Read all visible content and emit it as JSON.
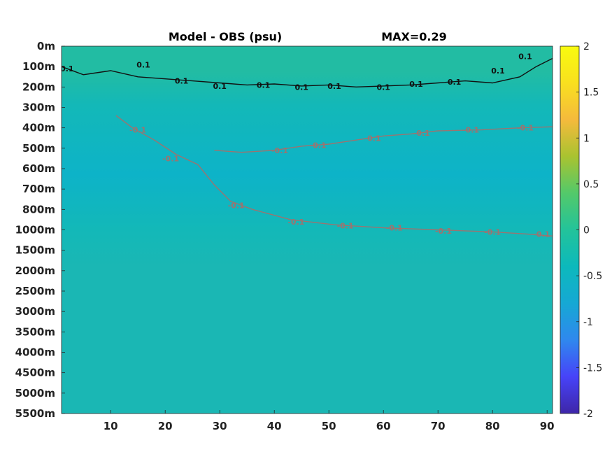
{
  "chart_data": {
    "type": "heatmap",
    "title": "Model - OBS (psu)",
    "max_text": "MAX=0.29",
    "x_ticks": [
      10,
      20,
      30,
      40,
      50,
      60,
      70,
      80,
      90
    ],
    "xlim": [
      1,
      91
    ],
    "y_tick_labels": [
      "0m",
      "100m",
      "200m",
      "300m",
      "400m",
      "500m",
      "600m",
      "700m",
      "800m",
      "1000m",
      "1500m",
      "2000m",
      "2500m",
      "3000m",
      "3500m",
      "4000m",
      "4500m",
      "5000m",
      "5500m"
    ],
    "colorbar": {
      "range": [
        -2,
        2
      ],
      "ticks": [
        "2",
        "1.5",
        "1",
        "0.5",
        "0",
        "-0.5",
        "-1",
        "-1.5",
        "-2"
      ],
      "colormap": [
        "#3e26a8",
        "#4743f8",
        "#2f88ee",
        "#16a8d4",
        "#0cb9bc",
        "#23c39a",
        "#53c96a",
        "#a9c330",
        "#f5ba3c",
        "#f9e01f",
        "#f9fb0e"
      ]
    },
    "field_colors": {
      "background": "#13b8b8",
      "surface_positive": "#22bca3",
      "subsurface_negative": "#0db3c8",
      "near_zero": "#1ab7b4"
    },
    "contour_level": "0.1",
    "contours": [
      {
        "name": "0.1",
        "color": "#111111",
        "style": "dark",
        "points": [
          [
            1,
            1
          ],
          [
            5,
            1.4
          ],
          [
            10,
            1.2
          ],
          [
            15,
            1.5
          ],
          [
            20,
            1.6
          ],
          [
            25,
            1.7
          ],
          [
            30,
            1.8
          ],
          [
            35,
            1.9
          ],
          [
            40,
            1.85
          ],
          [
            45,
            1.95
          ],
          [
            50,
            1.9
          ],
          [
            55,
            2.0
          ],
          [
            60,
            1.95
          ],
          [
            65,
            1.9
          ],
          [
            70,
            1.8
          ],
          [
            75,
            1.7
          ],
          [
            80,
            1.8
          ],
          [
            85,
            1.5
          ],
          [
            88,
            1.0
          ],
          [
            91,
            0.6
          ]
        ]
      },
      {
        "name": "-0.1",
        "color": "#9b7470",
        "style": "grey",
        "points": [
          [
            11,
            3.4
          ],
          [
            14,
            4.0
          ],
          [
            18,
            4.6
          ],
          [
            22,
            5.3
          ],
          [
            26,
            5.8
          ],
          [
            29,
            6.8
          ],
          [
            32,
            7.6
          ],
          [
            36,
            8.0
          ],
          [
            43,
            8.5
          ],
          [
            51,
            8.75
          ],
          [
            60,
            8.9
          ],
          [
            70,
            9.0
          ],
          [
            80,
            9.1
          ],
          [
            86,
            9.2
          ],
          [
            91,
            9.3
          ]
        ]
      },
      {
        "name": "-0.1",
        "color": "#9b7470",
        "style": "grey",
        "points": [
          [
            29,
            5.1
          ],
          [
            34,
            5.2
          ],
          [
            40,
            5.1
          ],
          [
            45,
            4.9
          ],
          [
            50,
            4.8
          ],
          [
            55,
            4.6
          ],
          [
            60,
            4.4
          ],
          [
            65,
            4.3
          ],
          [
            70,
            4.15
          ],
          [
            78,
            4.1
          ],
          [
            85,
            4.0
          ],
          [
            91,
            3.95
          ]
        ]
      }
    ],
    "contour_labels": [
      {
        "text": "0.1",
        "x": 2,
        "y": 1.1,
        "style": "dark"
      },
      {
        "text": "0.1",
        "x": 16,
        "y": 0.9,
        "style": "dark"
      },
      {
        "text": "0.1",
        "x": 23,
        "y": 1.7,
        "style": "dark"
      },
      {
        "text": "0.1",
        "x": 30,
        "y": 1.95,
        "style": "dark"
      },
      {
        "text": "0.1",
        "x": 38,
        "y": 1.9,
        "style": "dark"
      },
      {
        "text": "0.1",
        "x": 45,
        "y": 2.0,
        "style": "dark"
      },
      {
        "text": "0.1",
        "x": 51,
        "y": 1.95,
        "style": "dark"
      },
      {
        "text": "0.1",
        "x": 60,
        "y": 2.0,
        "style": "dark"
      },
      {
        "text": "0.1",
        "x": 66,
        "y": 1.85,
        "style": "dark"
      },
      {
        "text": "0.1",
        "x": 73,
        "y": 1.75,
        "style": "dark"
      },
      {
        "text": "0.1",
        "x": 81,
        "y": 1.2,
        "style": "dark"
      },
      {
        "text": "0.1",
        "x": 86,
        "y": 0.5,
        "style": "dark"
      },
      {
        "text": "-0.1",
        "x": 15,
        "y": 4.1,
        "style": "grey"
      },
      {
        "text": "-0.1",
        "x": 21,
        "y": 5.5,
        "style": "grey"
      },
      {
        "text": "-0.1",
        "x": 33,
        "y": 7.8,
        "style": "grey"
      },
      {
        "text": "-0.1",
        "x": 44,
        "y": 8.6,
        "style": "grey"
      },
      {
        "text": "-0.1",
        "x": 53,
        "y": 8.8,
        "style": "grey"
      },
      {
        "text": "-0.1",
        "x": 62,
        "y": 8.9,
        "style": "grey"
      },
      {
        "text": "-0.1",
        "x": 71,
        "y": 9.05,
        "style": "grey"
      },
      {
        "text": "-0.1",
        "x": 80,
        "y": 9.1,
        "style": "grey"
      },
      {
        "text": "-0.1",
        "x": 89,
        "y": 9.2,
        "style": "grey"
      },
      {
        "text": "-0.1",
        "x": 41,
        "y": 5.1,
        "style": "grey"
      },
      {
        "text": "-0.1",
        "x": 48,
        "y": 4.85,
        "style": "grey"
      },
      {
        "text": "-0.1",
        "x": 58,
        "y": 4.5,
        "style": "grey"
      },
      {
        "text": "-0.1",
        "x": 67,
        "y": 4.25,
        "style": "grey"
      },
      {
        "text": "-0.1",
        "x": 76,
        "y": 4.1,
        "style": "grey"
      },
      {
        "text": "-0.1",
        "x": 86,
        "y": 4.0,
        "style": "grey"
      }
    ]
  }
}
